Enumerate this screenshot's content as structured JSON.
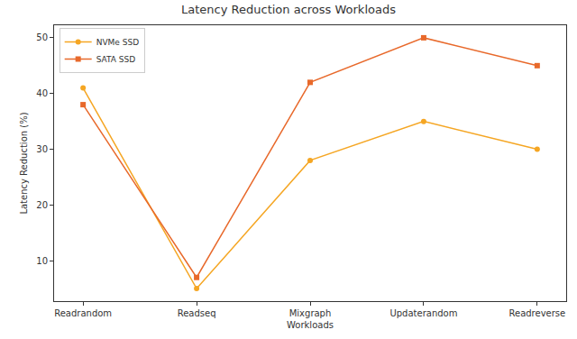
{
  "chart_data": {
    "type": "line",
    "title": "Latency Reduction across Workloads",
    "x_label": "Workloads",
    "y_label": "Latency Reduction (%)",
    "categories": [
      "Readrandom",
      "Readseq",
      "Mixgraph",
      "Updaterandom",
      "Readreverse"
    ],
    "series": [
      {
        "name": "NVMe SSD",
        "color": "#f5a623",
        "marker": "circle",
        "values": [
          41,
          5,
          28,
          35,
          30
        ]
      },
      {
        "name": "SATA SSD",
        "color": "#e8692b",
        "marker": "square",
        "values": [
          38,
          7,
          42,
          50,
          45
        ]
      }
    ],
    "ylim": [
      2.75,
      52.25
    ],
    "yticks": [
      10,
      20,
      30,
      40,
      50
    ],
    "grid": false,
    "legend": "upper left"
  }
}
